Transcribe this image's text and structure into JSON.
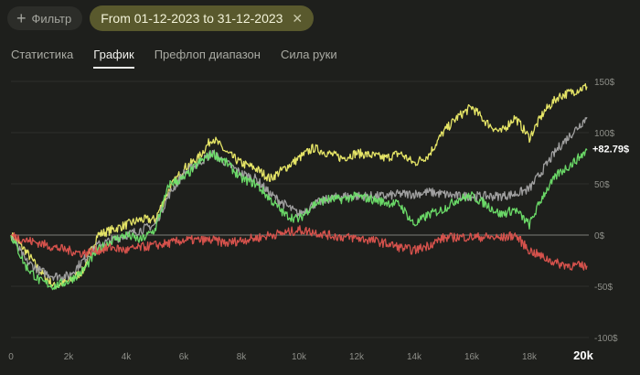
{
  "toolbar": {
    "filter_label": "Фильтр",
    "date_range": "From 01-12-2023 to 31-12-2023"
  },
  "tabs": [
    {
      "label": "Статистика",
      "active": false
    },
    {
      "label": "График",
      "active": true
    },
    {
      "label": "Префлоп диапазон",
      "active": false
    },
    {
      "label": "Сила руки",
      "active": false
    }
  ],
  "chart_data": {
    "type": "line",
    "x_ticks": [
      "0",
      "2k",
      "4k",
      "6k",
      "8k",
      "10k",
      "12k",
      "14k",
      "16k",
      "18k",
      "20k"
    ],
    "y_ticks": [
      "150$",
      "100$",
      "50$",
      "0$",
      "-50$",
      "-100$"
    ],
    "xlim": [
      0,
      20000
    ],
    "ylim": [
      -100,
      150
    ],
    "final_label": "+82.79$",
    "colors": {
      "yellow": "#f0ef6a",
      "gray": "#a6a6a6",
      "green": "#6fe36b",
      "red": "#e0554f"
    },
    "series": [
      {
        "color": "yellow",
        "x": [
          0,
          500,
          1000,
          1500,
          2000,
          2500,
          3000,
          3500,
          4000,
          4500,
          5000,
          5500,
          6000,
          6500,
          7000,
          7500,
          8000,
          8500,
          9000,
          9500,
          10000,
          10500,
          11000,
          11500,
          12000,
          12500,
          13000,
          13500,
          14000,
          14500,
          15000,
          15500,
          16000,
          16500,
          17000,
          17500,
          18000,
          18500,
          19000,
          19500,
          20000
        ],
        "y": [
          0,
          -15,
          -35,
          -50,
          -45,
          -35,
          0,
          5,
          10,
          15,
          15,
          45,
          65,
          75,
          95,
          80,
          70,
          65,
          55,
          65,
          75,
          85,
          80,
          75,
          80,
          78,
          75,
          80,
          70,
          78,
          100,
          115,
          125,
          110,
          100,
          115,
          95,
          120,
          135,
          140,
          145
        ]
      },
      {
        "color": "gray",
        "x": [
          0,
          500,
          1000,
          1500,
          2000,
          2500,
          3000,
          3500,
          4000,
          4500,
          5000,
          5500,
          6000,
          6500,
          7000,
          7500,
          8000,
          8500,
          9000,
          9500,
          10000,
          10500,
          11000,
          11500,
          12000,
          12500,
          13000,
          13500,
          14000,
          14500,
          15000,
          15500,
          16000,
          16500,
          17000,
          17500,
          18000,
          18500,
          19000,
          19500,
          20000
        ],
        "y": [
          0,
          -25,
          -35,
          -40,
          -40,
          -25,
          -10,
          -5,
          0,
          5,
          10,
          40,
          60,
          70,
          80,
          70,
          60,
          55,
          40,
          30,
          20,
          30,
          35,
          38,
          38,
          38,
          38,
          40,
          40,
          42,
          40,
          38,
          38,
          38,
          38,
          40,
          45,
          65,
          85,
          100,
          115
        ]
      },
      {
        "color": "green",
        "x": [
          0,
          500,
          1000,
          1500,
          2000,
          2500,
          3000,
          3500,
          4000,
          4500,
          5000,
          5500,
          6000,
          6500,
          7000,
          7500,
          8000,
          8500,
          9000,
          9500,
          10000,
          10500,
          11000,
          11500,
          12000,
          12500,
          13000,
          13500,
          14000,
          14500,
          15000,
          15500,
          16000,
          16500,
          17000,
          17500,
          18000,
          18500,
          19000,
          19500,
          20000
        ],
        "y": [
          0,
          -30,
          -45,
          -50,
          -45,
          -35,
          -15,
          -5,
          0,
          -5,
          5,
          50,
          55,
          70,
          80,
          70,
          55,
          50,
          35,
          20,
          15,
          30,
          35,
          35,
          38,
          35,
          32,
          30,
          10,
          20,
          25,
          35,
          38,
          30,
          20,
          25,
          10,
          40,
          60,
          70,
          82.79
        ]
      },
      {
        "color": "red",
        "x": [
          0,
          500,
          1000,
          1500,
          2000,
          2500,
          3000,
          3500,
          4000,
          4500,
          5000,
          5500,
          6000,
          6500,
          7000,
          7500,
          8000,
          8500,
          9000,
          9500,
          10000,
          10500,
          11000,
          11500,
          12000,
          12500,
          13000,
          13500,
          14000,
          14500,
          15000,
          15500,
          16000,
          16500,
          17000,
          17500,
          18000,
          18500,
          19000,
          19500,
          20000
        ],
        "y": [
          0,
          -5,
          -8,
          -12,
          -15,
          -18,
          -15,
          -12,
          -15,
          -12,
          -10,
          -8,
          -5,
          -5,
          -5,
          -8,
          -5,
          -3,
          0,
          2,
          5,
          3,
          0,
          -2,
          -3,
          -5,
          -8,
          -12,
          -15,
          -10,
          -3,
          -2,
          -2,
          -2,
          -3,
          0,
          -15,
          -22,
          -28,
          -30,
          -30
        ]
      }
    ]
  }
}
